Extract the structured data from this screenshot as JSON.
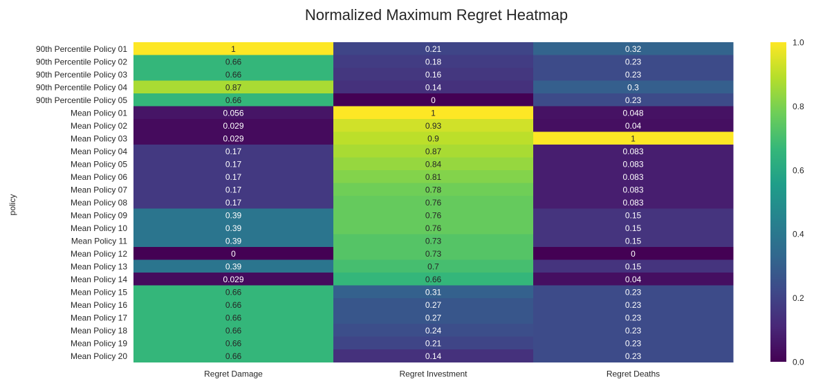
{
  "chart_data": {
    "type": "heatmap",
    "title": "Normalized Maximum Regret Heatmap",
    "ylabel": "policy",
    "xlabel": "",
    "columns": [
      "Regret Damage",
      "Regret Investment",
      "Regret Deaths"
    ],
    "rows": [
      "90th Percentile Policy 01",
      "90th Percentile Policy 02",
      "90th Percentile Policy 03",
      "90th Percentile Policy 04",
      "90th Percentile Policy 05",
      "Mean Policy 01",
      "Mean Policy 02",
      "Mean Policy 03",
      "Mean Policy 04",
      "Mean Policy 05",
      "Mean Policy 06",
      "Mean Policy 07",
      "Mean Policy 08",
      "Mean Policy 09",
      "Mean Policy 10",
      "Mean Policy 11",
      "Mean Policy 12",
      "Mean Policy 13",
      "Mean Policy 14",
      "Mean Policy 15",
      "Mean Policy 16",
      "Mean Policy 17",
      "Mean Policy 18",
      "Mean Policy 19",
      "Mean Policy 20"
    ],
    "values": [
      [
        1,
        0.21,
        0.32
      ],
      [
        0.66,
        0.18,
        0.23
      ],
      [
        0.66,
        0.16,
        0.23
      ],
      [
        0.87,
        0.14,
        0.3
      ],
      [
        0.66,
        0,
        0.23
      ],
      [
        0.056,
        1,
        0.048
      ],
      [
        0.029,
        0.93,
        0.04
      ],
      [
        0.029,
        0.9,
        1
      ],
      [
        0.17,
        0.87,
        0.083
      ],
      [
        0.17,
        0.84,
        0.083
      ],
      [
        0.17,
        0.81,
        0.083
      ],
      [
        0.17,
        0.78,
        0.083
      ],
      [
        0.17,
        0.76,
        0.083
      ],
      [
        0.39,
        0.76,
        0.15
      ],
      [
        0.39,
        0.76,
        0.15
      ],
      [
        0.39,
        0.73,
        0.15
      ],
      [
        0,
        0.73,
        0
      ],
      [
        0.39,
        0.7,
        0.15
      ],
      [
        0.029,
        0.66,
        0.04
      ],
      [
        0.66,
        0.31,
        0.23
      ],
      [
        0.66,
        0.27,
        0.23
      ],
      [
        0.66,
        0.27,
        0.23
      ],
      [
        0.66,
        0.24,
        0.23
      ],
      [
        0.66,
        0.21,
        0.23
      ],
      [
        0.66,
        0.14,
        0.23
      ]
    ],
    "colormap": "viridis",
    "vmin": 0,
    "vmax": 1,
    "colorbar_ticks": [
      "0.0",
      "0.2",
      "0.4",
      "0.6",
      "0.8",
      "1.0"
    ],
    "annotations": true,
    "grid": false,
    "colorbar_position": "right"
  }
}
